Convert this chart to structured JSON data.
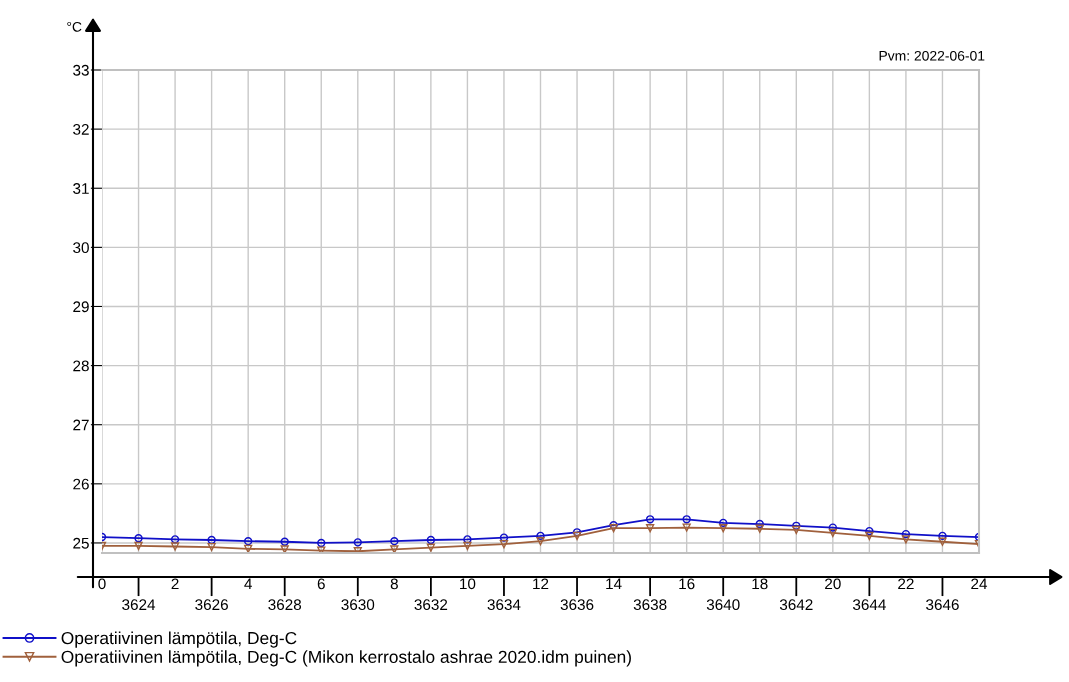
{
  "chart_data": {
    "type": "line",
    "ylabel": "°C",
    "annotations": [
      "Pvm: 2022-06-01"
    ],
    "x": [
      0,
      1,
      2,
      3,
      4,
      5,
      6,
      7,
      8,
      9,
      10,
      11,
      12,
      13,
      14,
      15,
      16,
      17,
      18,
      19,
      20,
      21,
      22,
      23,
      24
    ],
    "series": [
      {
        "name": "Operatiivinen lämpötila, Deg-C",
        "color": "#1010c8",
        "marker": "circle",
        "values": [
          25.1,
          25.08,
          25.06,
          25.05,
          25.03,
          25.02,
          25.0,
          25.01,
          25.03,
          25.05,
          25.06,
          25.09,
          25.12,
          25.18,
          25.3,
          25.4,
          25.4,
          25.34,
          25.32,
          25.29,
          25.26,
          25.2,
          25.15,
          25.12,
          25.1
        ]
      },
      {
        "name": "Operatiivinen lämpötila, Deg-C (Mikon kerrostalo ashrae 2020.idm puinen)",
        "color": "#a0603c",
        "marker": "triangle",
        "values": [
          24.95,
          24.95,
          24.94,
          24.93,
          24.9,
          24.89,
          24.87,
          24.86,
          24.89,
          24.92,
          24.95,
          24.98,
          25.03,
          25.12,
          25.25,
          25.25,
          25.26,
          25.25,
          25.24,
          25.22,
          25.17,
          25.12,
          25.06,
          25.02,
          24.98
        ]
      }
    ],
    "xlim": [
      0,
      24
    ],
    "xticks": [
      0,
      {
        "value": 1,
        "label": null
      },
      2,
      {
        "value": 3,
        "label": null
      },
      4,
      {
        "value": 5,
        "label": null
      },
      6,
      {
        "value": 7,
        "label": null
      },
      8,
      {
        "value": 9,
        "label": null
      },
      10,
      {
        "value": 11,
        "label": null
      },
      12,
      {
        "value": 13,
        "label": null
      },
      14,
      {
        "value": 15,
        "label": null
      },
      16,
      {
        "value": 17,
        "label": null
      },
      18,
      {
        "value": 19,
        "label": null
      },
      20,
      {
        "value": 21,
        "label": null
      },
      22,
      {
        "value": 23,
        "label": null
      },
      24
    ],
    "x2lim": [
      3623,
      3647
    ],
    "x2ticks": [
      3624,
      3626,
      3628,
      3630,
      3632,
      3634,
      3636,
      3638,
      3640,
      3642,
      3644,
      3646
    ],
    "ylim": [
      24.83,
      33
    ],
    "yticks": [
      25,
      26,
      27,
      28,
      29,
      30,
      31,
      32,
      33
    ],
    "grid": true,
    "legend": "bottom"
  }
}
